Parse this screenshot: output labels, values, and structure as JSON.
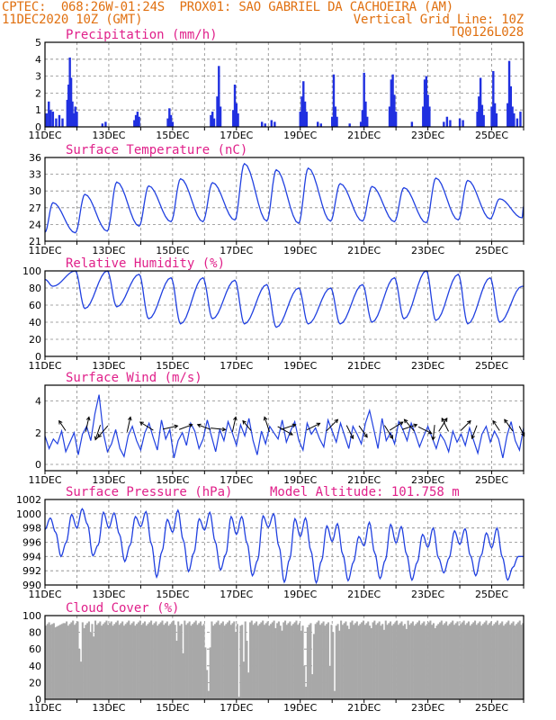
{
  "header": {
    "line1": "CPTEC:  068:26W-01:24S  PROX01: SAO GABRIEL DA CACHOEIRA (AM)",
    "line2_left": "11DEC2020 10Z (GMT)",
    "line2_right": "Vertical Grid Line: 10Z",
    "line3_right": "TQ0126L028"
  },
  "colors": {
    "header": "#e07010",
    "title": "#e0208a",
    "series": "#2040e0",
    "cloud": "#a8a8a8",
    "bars": "#2030e0"
  },
  "chart_data": [
    {
      "type": "bar",
      "title": "Precipitation (mm/h)",
      "x_ticks": [
        "11DEC",
        "13DEC",
        "15DEC",
        "17DEC",
        "19DEC",
        "21DEC",
        "23DEC",
        "25DEC"
      ],
      "x_range_days": [
        0,
        15
      ],
      "ylim": [
        0,
        5
      ],
      "y_ticks": [
        0,
        1,
        2,
        3,
        4,
        5
      ],
      "bars": [
        {
          "t": 0.05,
          "v": 0.8
        },
        {
          "t": 0.12,
          "v": 1.5
        },
        {
          "t": 0.18,
          "v": 1.0
        },
        {
          "t": 0.25,
          "v": 0.9
        },
        {
          "t": 0.35,
          "v": 0.5
        },
        {
          "t": 0.45,
          "v": 0.7
        },
        {
          "t": 0.55,
          "v": 0.5
        },
        {
          "t": 0.7,
          "v": 1.6
        },
        {
          "t": 0.74,
          "v": 2.5
        },
        {
          "t": 0.78,
          "v": 4.1
        },
        {
          "t": 0.82,
          "v": 2.9
        },
        {
          "t": 0.86,
          "v": 1.5
        },
        {
          "t": 0.9,
          "v": 0.8
        },
        {
          "t": 0.95,
          "v": 1.2
        },
        {
          "t": 1.0,
          "v": 0.9
        },
        {
          "t": 1.8,
          "v": 0.2
        },
        {
          "t": 1.9,
          "v": 0.3
        },
        {
          "t": 2.8,
          "v": 0.4
        },
        {
          "t": 2.85,
          "v": 0.7
        },
        {
          "t": 2.9,
          "v": 0.9
        },
        {
          "t": 2.95,
          "v": 0.6
        },
        {
          "t": 3.85,
          "v": 0.5
        },
        {
          "t": 3.9,
          "v": 1.1
        },
        {
          "t": 3.95,
          "v": 0.7
        },
        {
          "t": 4.0,
          "v": 0.3
        },
        {
          "t": 5.2,
          "v": 0.7
        },
        {
          "t": 5.25,
          "v": 0.9
        },
        {
          "t": 5.3,
          "v": 0.5
        },
        {
          "t": 5.4,
          "v": 1.8
        },
        {
          "t": 5.45,
          "v": 3.6
        },
        {
          "t": 5.5,
          "v": 1.2
        },
        {
          "t": 5.9,
          "v": 1.0
        },
        {
          "t": 5.95,
          "v": 2.5
        },
        {
          "t": 6.0,
          "v": 1.4
        },
        {
          "t": 6.05,
          "v": 0.8
        },
        {
          "t": 6.8,
          "v": 0.3
        },
        {
          "t": 6.9,
          "v": 0.2
        },
        {
          "t": 7.1,
          "v": 0.4
        },
        {
          "t": 7.2,
          "v": 0.3
        },
        {
          "t": 8.0,
          "v": 0.9
        },
        {
          "t": 8.05,
          "v": 1.8
        },
        {
          "t": 8.1,
          "v": 2.7
        },
        {
          "t": 8.15,
          "v": 1.5
        },
        {
          "t": 8.2,
          "v": 0.9
        },
        {
          "t": 8.55,
          "v": 0.3
        },
        {
          "t": 8.65,
          "v": 0.2
        },
        {
          "t": 9.0,
          "v": 0.6
        },
        {
          "t": 9.05,
          "v": 3.1
        },
        {
          "t": 9.1,
          "v": 1.2
        },
        {
          "t": 9.15,
          "v": 0.6
        },
        {
          "t": 9.55,
          "v": 0.2
        },
        {
          "t": 9.9,
          "v": 0.3
        },
        {
          "t": 9.95,
          "v": 1.0
        },
        {
          "t": 10.0,
          "v": 3.2
        },
        {
          "t": 10.05,
          "v": 1.5
        },
        {
          "t": 10.1,
          "v": 0.6
        },
        {
          "t": 10.8,
          "v": 1.2
        },
        {
          "t": 10.85,
          "v": 2.8
        },
        {
          "t": 10.9,
          "v": 3.1
        },
        {
          "t": 10.95,
          "v": 1.9
        },
        {
          "t": 11.0,
          "v": 0.9
        },
        {
          "t": 11.5,
          "v": 0.3
        },
        {
          "t": 11.85,
          "v": 1.2
        },
        {
          "t": 11.9,
          "v": 2.8
        },
        {
          "t": 11.95,
          "v": 3.0
        },
        {
          "t": 12.0,
          "v": 1.9
        },
        {
          "t": 12.05,
          "v": 1.2
        },
        {
          "t": 12.5,
          "v": 0.3
        },
        {
          "t": 12.6,
          "v": 0.6
        },
        {
          "t": 12.7,
          "v": 0.4
        },
        {
          "t": 13.0,
          "v": 0.5
        },
        {
          "t": 13.1,
          "v": 0.4
        },
        {
          "t": 13.55,
          "v": 0.9
        },
        {
          "t": 13.6,
          "v": 1.8
        },
        {
          "t": 13.65,
          "v": 2.9
        },
        {
          "t": 13.7,
          "v": 1.3
        },
        {
          "t": 13.75,
          "v": 0.7
        },
        {
          "t": 14.0,
          "v": 1.2
        },
        {
          "t": 14.05,
          "v": 3.3
        },
        {
          "t": 14.1,
          "v": 1.4
        },
        {
          "t": 14.15,
          "v": 0.8
        },
        {
          "t": 14.5,
          "v": 1.4
        },
        {
          "t": 14.55,
          "v": 3.9
        },
        {
          "t": 14.6,
          "v": 2.4
        },
        {
          "t": 14.65,
          "v": 1.2
        },
        {
          "t": 14.7,
          "v": 0.8
        },
        {
          "t": 14.8,
          "v": 0.5
        },
        {
          "t": 14.9,
          "v": 0.9
        }
      ]
    },
    {
      "type": "line",
      "title": "Surface Temperature (nC)",
      "x_ticks": [
        "11DEC",
        "13DEC",
        "15DEC",
        "17DEC",
        "19DEC",
        "21DEC",
        "23DEC",
        "25DEC"
      ],
      "ylim": [
        21,
        36
      ],
      "y_ticks": [
        21,
        24,
        27,
        30,
        33,
        36
      ],
      "minima": [
        22.5,
        22.8,
        23.7,
        24.5,
        24.5,
        24.8,
        24.6,
        24.2,
        24.6,
        24.6,
        24.5,
        24.3,
        24.8,
        25.0,
        25.2
      ],
      "maxima": [
        27.9,
        29.4,
        31.6,
        30.9,
        32.2,
        31.5,
        34.9,
        33.8,
        34.1,
        31.3,
        30.8,
        30.6,
        32.3,
        31.9,
        28.6
      ],
      "min_phase": 0.95,
      "max_phase": 0.25
    },
    {
      "type": "line",
      "title": "Relative Humidity (%)",
      "x_ticks": [
        "11DEC",
        "13DEC",
        "15DEC",
        "17DEC",
        "19DEC",
        "21DEC",
        "23DEC",
        "25DEC"
      ],
      "ylim": [
        0,
        100
      ],
      "y_ticks": [
        0,
        20,
        40,
        60,
        80,
        100
      ],
      "maxima": [
        100,
        100,
        96,
        92,
        92,
        89,
        84,
        80,
        80,
        84,
        92,
        100,
        96,
        92,
        82
      ],
      "minima": [
        82,
        56,
        58,
        44,
        38,
        44,
        38,
        34,
        38,
        38,
        40,
        44,
        42,
        38,
        40
      ],
      "min_phase": 0.25,
      "max_phase": 0.95
    },
    {
      "type": "line",
      "title": "Surface Wind (m/s)",
      "x_ticks": [
        "11DEC",
        "13DEC",
        "15DEC",
        "17DEC",
        "19DEC",
        "21DEC",
        "23DEC",
        "25DEC"
      ],
      "ylim": [
        -0.4,
        5
      ],
      "y_ticks": [
        0,
        2,
        4
      ],
      "values": [
        1.8,
        1.0,
        1.6,
        1.3,
        2.1,
        0.8,
        1.4,
        2.0,
        0.6,
        1.9,
        2.4,
        1.5,
        3.2,
        4.4,
        2.0,
        0.8,
        1.3,
        2.2,
        1.0,
        0.5,
        1.8,
        2.4,
        1.5,
        0.9,
        2.0,
        2.6,
        1.7,
        0.9,
        2.8,
        1.6,
        2.2,
        0.4,
        1.5,
        2.0,
        1.2,
        2.6,
        2.1,
        1.0,
        1.6,
        2.8,
        1.8,
        0.8,
        2.2,
        1.5,
        2.7,
        2.0,
        1.2,
        2.5,
        1.8,
        2.9,
        1.5,
        0.6,
        2.1,
        1.3,
        2.4,
        2.0,
        1.6,
        2.8,
        1.4,
        2.1,
        2.7,
        1.5,
        0.9,
        2.6,
        1.9,
        2.3,
        1.6,
        1.1,
        2.8,
        2.1,
        1.4,
        2.6,
        1.8,
        1.0,
        2.4,
        1.9,
        1.3,
        2.6,
        3.4,
        2.2,
        1.0,
        2.9,
        1.5,
        2.0,
        1.3,
        2.7,
        2.2,
        1.5,
        2.6,
        1.9,
        1.1,
        1.8,
        2.4,
        1.7,
        1.0,
        1.9,
        1.5,
        0.8,
        2.1,
        1.4,
        1.9,
        1.2,
        2.3,
        1.5,
        0.7,
        1.9,
        2.4,
        1.4,
        2.1,
        1.6,
        0.4,
        1.8,
        2.7,
        1.5,
        0.9,
        2.3
      ],
      "arrows": [
        {
          "t": 0.6,
          "u": -0.4,
          "v": 0.6
        },
        {
          "t": 1.3,
          "u": 0.2,
          "v": 0.9
        },
        {
          "t": 1.7,
          "u": -0.3,
          "v": -0.9
        },
        {
          "t": 1.9,
          "u": -0.6,
          "v": -0.7
        },
        {
          "t": 2.6,
          "u": 0.2,
          "v": 0.9
        },
        {
          "t": 3.3,
          "u": -0.8,
          "v": 0.5
        },
        {
          "t": 3.8,
          "u": 0.9,
          "v": 0.2
        },
        {
          "t": 4.3,
          "u": 0.8,
          "v": 0.3
        },
        {
          "t": 5.1,
          "u": -0.8,
          "v": 0.3
        },
        {
          "t": 5.3,
          "u": 0.9,
          "v": -0.1
        },
        {
          "t": 5.9,
          "u": 0.2,
          "v": 0.9
        },
        {
          "t": 6.4,
          "u": -0.5,
          "v": 0.6
        },
        {
          "t": 7.0,
          "u": -0.3,
          "v": 0.9
        },
        {
          "t": 7.4,
          "u": 0.9,
          "v": -0.5
        },
        {
          "t": 7.5,
          "u": 0.9,
          "v": 0.3
        },
        {
          "t": 8.3,
          "u": 0.8,
          "v": 0.4
        },
        {
          "t": 8.9,
          "u": 0.7,
          "v": 0.7
        },
        {
          "t": 9.5,
          "u": 0.4,
          "v": -0.8
        },
        {
          "t": 9.9,
          "u": 0.5,
          "v": -0.7
        },
        {
          "t": 10.7,
          "u": 0.5,
          "v": -0.8
        },
        {
          "t": 10.9,
          "u": 0.8,
          "v": 0.5
        },
        {
          "t": 11.3,
          "u": 0.9,
          "v": 0.3
        },
        {
          "t": 11.5,
          "u": -0.6,
          "v": 0.7
        },
        {
          "t": 11.8,
          "u": 0.8,
          "v": -0.4
        },
        {
          "t": 12.2,
          "u": -0.1,
          "v": -0.9
        },
        {
          "t": 12.4,
          "u": 0.5,
          "v": 0.8
        },
        {
          "t": 12.6,
          "u": -0.4,
          "v": 0.8
        },
        {
          "t": 13.1,
          "u": 0.6,
          "v": 0.6
        },
        {
          "t": 13.5,
          "u": -0.3,
          "v": -0.8
        },
        {
          "t": 14.2,
          "u": -0.4,
          "v": 0.6
        },
        {
          "t": 14.6,
          "u": -0.5,
          "v": 0.7
        },
        {
          "t": 14.9,
          "u": 0.3,
          "v": -0.6
        }
      ]
    },
    {
      "type": "line",
      "title": "Surface Pressure (hPa)",
      "annotation": "Model Altitude: 101.758 m",
      "x_ticks": [
        "11DEC",
        "13DEC",
        "15DEC",
        "17DEC",
        "19DEC",
        "21DEC",
        "23DEC",
        "25DEC"
      ],
      "ylim": [
        990,
        1002
      ],
      "y_ticks": [
        990,
        992,
        994,
        996,
        998,
        1000,
        1002
      ],
      "daily": [
        [
          997.8,
          999.4,
          997.4,
          994.0,
          996.0,
          999.9
        ],
        [
          998.0,
          1000.7,
          998.5,
          994.1,
          995.6,
          1000.2
        ],
        [
          998.0,
          1000.1,
          997.1,
          993.3,
          995.6,
          999.6
        ],
        [
          998.2,
          1000.3,
          995.8,
          991.1,
          994.7,
          999.2
        ],
        [
          997.4,
          1000.5,
          996.3,
          991.9,
          994.5,
          999.3
        ],
        [
          997.7,
          1000.2,
          996.1,
          992.1,
          994.3,
          999.6
        ],
        [
          997.1,
          999.6,
          995.9,
          991.3,
          993.5,
          999.7
        ],
        [
          998.1,
          1000.0,
          995.4,
          990.4,
          993.6,
          999.3
        ],
        [
          996.8,
          999.4,
          994.8,
          990.3,
          993.4,
          998.3
        ],
        [
          996.1,
          998.6,
          994.3,
          990.6,
          993.2,
          996.8
        ],
        [
          995.5,
          998.8,
          994.5,
          990.9,
          993.5,
          998.5
        ],
        [
          995.9,
          998.2,
          994.3,
          990.7,
          993.2,
          997.1
        ],
        [
          995.3,
          998.0,
          993.8,
          991.7,
          993.8,
          997.6
        ],
        [
          995.7,
          997.9,
          994.1,
          991.3,
          994.1,
          997.3
        ],
        [
          995.2,
          998.0,
          993.9,
          990.7,
          992.5,
          994.0
        ]
      ]
    },
    {
      "type": "bar",
      "title": "Cloud Cover (%)",
      "x_ticks": [
        "11DEC",
        "13DEC",
        "15DEC",
        "17DEC",
        "19DEC",
        "21DEC",
        "23DEC",
        "25DEC"
      ],
      "ylim": [
        0,
        100
      ],
      "y_ticks": [
        0,
        20,
        40,
        60,
        80,
        100
      ],
      "base": 91,
      "dips": [
        {
          "t": 1.05,
          "v": 60
        },
        {
          "t": 1.1,
          "v": 45
        },
        {
          "t": 1.2,
          "v": 85
        },
        {
          "t": 1.4,
          "v": 80
        },
        {
          "t": 1.5,
          "v": 75
        },
        {
          "t": 4.1,
          "v": 70
        },
        {
          "t": 4.3,
          "v": 55
        },
        {
          "t": 5.0,
          "v": 62
        },
        {
          "t": 5.05,
          "v": 35
        },
        {
          "t": 5.1,
          "v": 10
        },
        {
          "t": 5.15,
          "v": 62
        },
        {
          "t": 5.95,
          "v": 80
        },
        {
          "t": 6.05,
          "v": 3
        },
        {
          "t": 6.1,
          "v": 88
        },
        {
          "t": 6.2,
          "v": 45
        },
        {
          "t": 6.3,
          "v": 70
        },
        {
          "t": 6.35,
          "v": 32
        },
        {
          "t": 7.2,
          "v": 85
        },
        {
          "t": 7.4,
          "v": 82
        },
        {
          "t": 8.0,
          "v": 82
        },
        {
          "t": 8.1,
          "v": 40
        },
        {
          "t": 8.15,
          "v": 15
        },
        {
          "t": 8.2,
          "v": 86
        },
        {
          "t": 8.35,
          "v": 30
        },
        {
          "t": 8.4,
          "v": 78
        },
        {
          "t": 8.9,
          "v": 40
        },
        {
          "t": 9.0,
          "v": 80
        },
        {
          "t": 9.05,
          "v": 10
        },
        {
          "t": 9.1,
          "v": 88
        },
        {
          "t": 9.2,
          "v": 82
        },
        {
          "t": 9.5,
          "v": 84
        },
        {
          "t": 10.2,
          "v": 85
        },
        {
          "t": 10.6,
          "v": 83
        },
        {
          "t": 11.3,
          "v": 84
        },
        {
          "t": 12.2,
          "v": 85
        }
      ]
    }
  ]
}
